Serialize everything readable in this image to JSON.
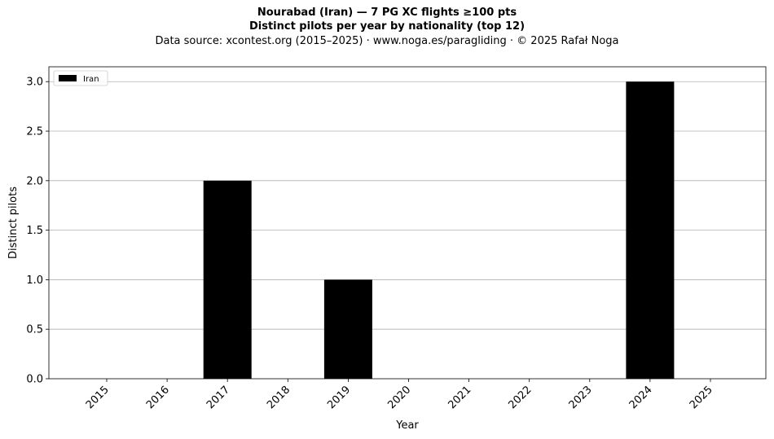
{
  "title_line1": "Nourabad (Iran)  —  7 PG XC flights ≥100 pts",
  "title_line2": "Distinct pilots per year by nationality (top 12)",
  "subtitle": "Data source: xcontest.org (2015–2025)  ·  www.noga.es/paragliding  ·  © 2025 Rafał Noga",
  "chart_data": {
    "type": "bar",
    "categories": [
      "2015",
      "2016",
      "2017",
      "2018",
      "2019",
      "2020",
      "2021",
      "2022",
      "2023",
      "2024",
      "2025"
    ],
    "series": [
      {
        "name": "Iran",
        "values": [
          0,
          0,
          2,
          0,
          1,
          0,
          0,
          0,
          0,
          3,
          0
        ],
        "color": "#000000"
      }
    ],
    "xlabel": "Year",
    "ylabel": "Distinct pilots",
    "ylim": [
      0,
      3.15
    ],
    "yticks": [
      "0.0",
      "0.5",
      "1.0",
      "1.5",
      "2.0",
      "2.5",
      "3.0"
    ],
    "grid": "horizontal",
    "legend": "top-left"
  }
}
